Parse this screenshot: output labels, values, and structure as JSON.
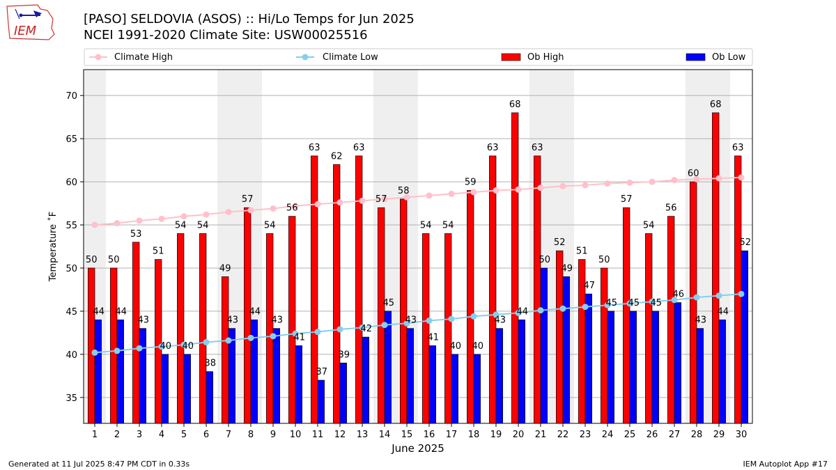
{
  "title": "[PASO] SELDOVIA (ASOS) :: Hi/Lo Temps for Jun 2025",
  "subtitle": "NCEI 1991-2020 Climate Site: USW00025516",
  "logo_text": "IEM",
  "footer_left": "Generated at 11 Jul 2025 8:47 PM CDT in 0.33s",
  "footer_right": "IEM Autoplot App #17",
  "chart_data": {
    "type": "bar",
    "xlabel": "June 2025",
    "ylabel": "Temperature ˚F",
    "ylim": [
      32,
      73
    ],
    "yticks": [
      35,
      40,
      45,
      50,
      55,
      60,
      65,
      70
    ],
    "grid": true,
    "legend_position": "top",
    "categories": [
      "1",
      "2",
      "3",
      "4",
      "5",
      "6",
      "7",
      "8",
      "9",
      "10",
      "11",
      "12",
      "13",
      "14",
      "15",
      "16",
      "17",
      "18",
      "19",
      "20",
      "21",
      "22",
      "23",
      "24",
      "25",
      "26",
      "27",
      "28",
      "29",
      "30"
    ],
    "weekend_days": [
      1,
      7,
      8,
      14,
      15,
      21,
      22,
      28,
      29
    ],
    "series": [
      {
        "name": "Ob High",
        "kind": "bar",
        "color": "#ff0000",
        "values": [
          50,
          50,
          53,
          51,
          54,
          54,
          49,
          57,
          54,
          56,
          63,
          62,
          63,
          57,
          58,
          54,
          54,
          59,
          63,
          68,
          63,
          52,
          51,
          50,
          57,
          54,
          56,
          60,
          68,
          63
        ]
      },
      {
        "name": "Ob Low",
        "kind": "bar",
        "color": "#0000ff",
        "values": [
          44,
          44,
          43,
          40,
          40,
          38,
          43,
          44,
          43,
          41,
          37,
          39,
          42,
          45,
          43,
          41,
          40,
          40,
          43,
          44,
          50,
          49,
          47,
          45,
          45,
          45,
          46,
          43,
          44,
          52
        ]
      },
      {
        "name": "Climate High",
        "kind": "line",
        "color": "#ffc0cb",
        "values": [
          55.0,
          55.2,
          55.5,
          55.7,
          56.0,
          56.2,
          56.5,
          56.7,
          56.9,
          57.2,
          57.4,
          57.6,
          57.8,
          58.0,
          58.2,
          58.4,
          58.6,
          58.8,
          59.0,
          59.1,
          59.3,
          59.5,
          59.6,
          59.8,
          59.9,
          60.0,
          60.2,
          60.3,
          60.4,
          60.5
        ]
      },
      {
        "name": "Climate Low",
        "kind": "line",
        "color": "#87ceeb",
        "values": [
          40.2,
          40.4,
          40.7,
          40.9,
          41.1,
          41.4,
          41.6,
          41.9,
          42.1,
          42.4,
          42.6,
          42.9,
          43.1,
          43.4,
          43.6,
          43.9,
          44.1,
          44.4,
          44.6,
          44.8,
          45.1,
          45.3,
          45.5,
          45.7,
          45.9,
          46.1,
          46.3,
          46.6,
          46.8,
          47.0
        ]
      }
    ]
  }
}
